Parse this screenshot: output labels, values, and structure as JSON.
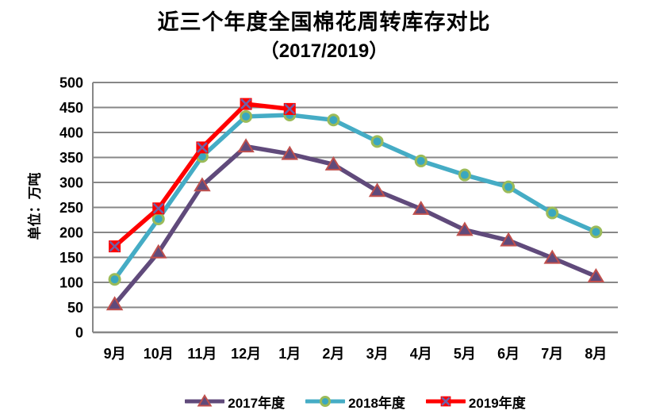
{
  "title": "近三个年度全国棉花周转库存对比",
  "subtitle": "（2017/2019）",
  "chart_data": {
    "type": "line",
    "title": "近三个年度全国棉花周转库存对比（2017/2019）",
    "categories": [
      "9月",
      "10月",
      "11月",
      "12月",
      "1月",
      "2月",
      "3月",
      "4月",
      "5月",
      "6月",
      "7月",
      "8月"
    ],
    "series": [
      {
        "name": "2017年度",
        "marker": "triangle",
        "color": "#604A7B",
        "marker_fill": "#604A7B",
        "marker_stroke": "#C0504D",
        "values": [
          56,
          160,
          294,
          372,
          357,
          336,
          283,
          247,
          205,
          184,
          149,
          112
        ]
      },
      {
        "name": "2018年度",
        "marker": "circle",
        "color": "#45ACC5",
        "marker_fill": "#3AA7BF",
        "marker_stroke": "#9BBB59",
        "values": [
          106,
          227,
          352,
          432,
          435,
          425,
          382,
          343,
          315,
          291,
          239,
          201
        ]
      },
      {
        "name": "2019年度",
        "marker": "x-square",
        "color": "#FF0000",
        "marker_fill": "#FF0000",
        "marker_stroke": "#7160A5",
        "values": [
          172,
          248,
          370,
          457,
          447,
          null,
          null,
          null,
          null,
          null,
          null,
          null
        ]
      }
    ],
    "xlabel": "",
    "ylabel": "单位：万吨",
    "ylim": [
      0,
      500
    ],
    "yticks": [
      0,
      50,
      100,
      150,
      200,
      250,
      300,
      350,
      400,
      450,
      500
    ],
    "grid": true,
    "gridline_color": "#878787",
    "axis_color": "#878787",
    "text_color": "#000000",
    "legend_position": "bottom"
  }
}
